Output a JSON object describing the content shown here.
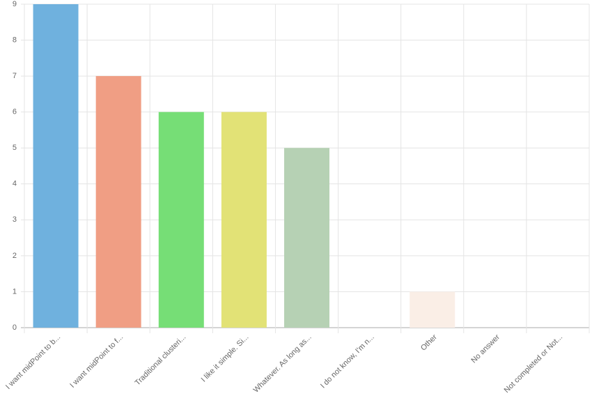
{
  "chart_data": {
    "type": "bar",
    "categories": [
      "I want midPoint to b...",
      "I want midPoint to f...",
      "Traditional clusteri...",
      "I like it simple. Si...",
      "Whatever. As long as...",
      "I do not know, I'm n...",
      "Other",
      "No answer",
      "Not completed or Not..."
    ],
    "values": [
      9,
      7,
      6,
      6,
      5,
      0,
      1,
      0,
      0
    ],
    "colors": [
      "#6fb1de",
      "#f09e84",
      "#76de76",
      "#e2e276",
      "#b6d1b4",
      null,
      "#faeee6",
      null,
      null
    ],
    "ylim": [
      0,
      9
    ],
    "yticks": [
      0,
      1,
      2,
      3,
      4,
      5,
      6,
      7,
      8,
      9
    ],
    "grid": true
  }
}
